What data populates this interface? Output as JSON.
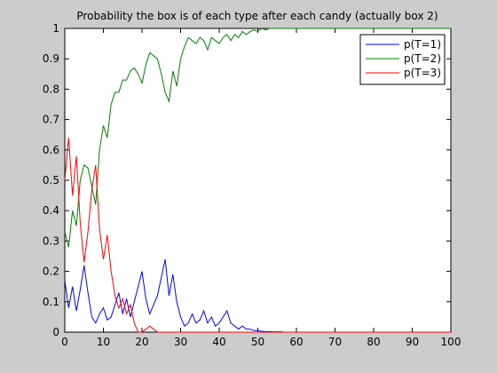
{
  "chart_data": {
    "type": "line",
    "title": "Probability the box is of each type after each candy (actually box 2)",
    "xlabel": "",
    "ylabel": "",
    "xlim": [
      0,
      100
    ],
    "ylim": [
      0,
      1
    ],
    "xticks": [
      "0",
      "10",
      "20",
      "30",
      "40",
      "50",
      "60",
      "70",
      "80",
      "90",
      "100"
    ],
    "yticks": [
      "0",
      "0.1",
      "0.2",
      "0.3",
      "0.4",
      "0.5",
      "0.6",
      "0.7",
      "0.8",
      "0.9",
      "1"
    ],
    "grid": false,
    "legend_position": "top-right",
    "series": [
      {
        "name": "p(T=1)",
        "color": "#0000ff",
        "x": [
          0,
          1,
          2,
          3,
          4,
          5,
          6,
          7,
          8,
          9,
          10,
          11,
          12,
          13,
          14,
          15,
          16,
          17,
          18,
          19,
          20,
          21,
          22,
          23,
          24,
          25,
          26,
          27,
          28,
          29,
          30,
          31,
          32,
          33,
          34,
          35,
          36,
          37,
          38,
          39,
          40,
          41,
          42,
          43,
          44,
          45,
          46,
          47,
          48,
          49,
          50,
          51,
          52,
          53,
          54,
          55,
          56,
          57,
          58,
          59,
          60,
          65,
          70,
          80,
          90,
          100
        ],
        "y": [
          0.17,
          0.08,
          0.15,
          0.07,
          0.14,
          0.22,
          0.13,
          0.05,
          0.03,
          0.06,
          0.08,
          0.04,
          0.05,
          0.09,
          0.13,
          0.06,
          0.11,
          0.05,
          0.1,
          0.15,
          0.2,
          0.11,
          0.06,
          0.09,
          0.12,
          0.18,
          0.24,
          0.12,
          0.19,
          0.1,
          0.05,
          0.02,
          0.03,
          0.06,
          0.03,
          0.04,
          0.07,
          0.03,
          0.05,
          0.02,
          0.03,
          0.05,
          0.07,
          0.03,
          0.02,
          0.01,
          0.02,
          0.01,
          0.01,
          0.005,
          0.005,
          0.003,
          0.002,
          0.002,
          0.001,
          0.001,
          0.001,
          0.0,
          0.0,
          0.0,
          0.0,
          0.0,
          0.0,
          0.0,
          0.0,
          0.0
        ]
      },
      {
        "name": "p(T=2)",
        "color": "#008000",
        "x": [
          0,
          1,
          2,
          3,
          4,
          5,
          6,
          7,
          8,
          9,
          10,
          11,
          12,
          13,
          14,
          15,
          16,
          17,
          18,
          19,
          20,
          21,
          22,
          23,
          24,
          25,
          26,
          27,
          28,
          29,
          30,
          31,
          32,
          33,
          34,
          35,
          36,
          37,
          38,
          39,
          40,
          41,
          42,
          43,
          44,
          45,
          46,
          47,
          48,
          49,
          50,
          51,
          52,
          53,
          54,
          55,
          56,
          57,
          58,
          59,
          60,
          65,
          70,
          80,
          90,
          100
        ],
        "y": [
          0.33,
          0.28,
          0.4,
          0.35,
          0.5,
          0.55,
          0.54,
          0.48,
          0.42,
          0.6,
          0.68,
          0.64,
          0.75,
          0.79,
          0.79,
          0.83,
          0.83,
          0.86,
          0.87,
          0.85,
          0.82,
          0.88,
          0.92,
          0.91,
          0.9,
          0.85,
          0.79,
          0.76,
          0.86,
          0.81,
          0.9,
          0.94,
          0.97,
          0.96,
          0.95,
          0.97,
          0.96,
          0.93,
          0.97,
          0.96,
          0.95,
          0.97,
          0.98,
          0.96,
          0.98,
          0.97,
          0.99,
          0.98,
          0.99,
          0.995,
          0.99,
          1.0,
          0.995,
          1.0,
          1.0,
          1.0,
          1.0,
          1.0,
          1.0,
          1.0,
          1.0,
          1.0,
          1.0,
          1.0,
          1.0,
          1.0
        ]
      },
      {
        "name": "p(T=3)",
        "color": "#ff0000",
        "x": [
          0,
          1,
          2,
          3,
          4,
          5,
          6,
          7,
          8,
          9,
          10,
          11,
          12,
          13,
          14,
          15,
          16,
          17,
          18,
          19,
          20,
          21,
          22,
          23,
          24,
          25,
          26,
          27,
          28,
          29,
          30,
          35,
          40,
          50,
          60,
          70,
          80,
          90,
          100
        ],
        "y": [
          0.5,
          0.64,
          0.45,
          0.58,
          0.36,
          0.23,
          0.33,
          0.47,
          0.55,
          0.34,
          0.24,
          0.32,
          0.2,
          0.12,
          0.08,
          0.11,
          0.06,
          0.09,
          0.03,
          0.0,
          0.0,
          0.01,
          0.02,
          0.01,
          0.0,
          0.0,
          0.0,
          0.0,
          0.0,
          0.0,
          0.0,
          0.0,
          0.0,
          0.0,
          0.0,
          0.0,
          0.0,
          0.0,
          0.0
        ]
      }
    ]
  }
}
